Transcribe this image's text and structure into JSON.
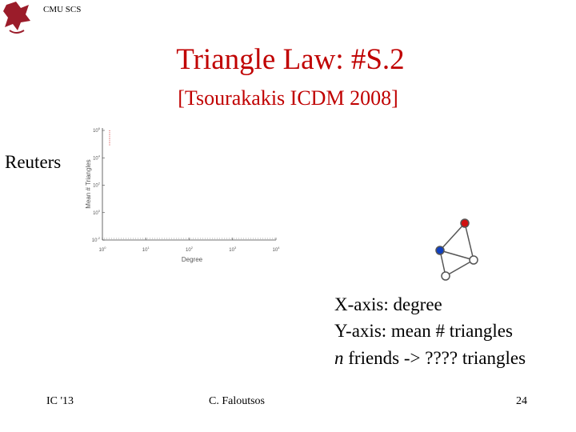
{
  "header": {
    "org": "CMU SCS"
  },
  "title": "Triangle Law: #S.2",
  "subtitle": "[Tsourakakis ICDM 2008]",
  "dataset_label": "Reuters",
  "plot": {
    "x_label": "Degree",
    "y_label": "Mean # Triangles",
    "x_ticks": [
      {
        "base": "10",
        "exp": "0"
      },
      {
        "base": "10",
        "exp": "1"
      },
      {
        "base": "10",
        "exp": "2"
      },
      {
        "base": "10",
        "exp": "3"
      },
      {
        "base": "10",
        "exp": "4"
      }
    ],
    "y_ticks": [
      {
        "base": "10",
        "exp": "6"
      },
      {
        "base": "10",
        "exp": "4"
      },
      {
        "base": "10",
        "exp": "2"
      },
      {
        "base": "10",
        "exp": "0"
      },
      {
        "base": "10",
        "exp": "-2"
      }
    ]
  },
  "notes": {
    "line1": "X-axis: degree",
    "line2": "Y-axis: mean # triangles",
    "line3_italic": "n",
    "line3_rest": " friends -> ???? triangles"
  },
  "footer": {
    "left": "IC '13",
    "center": "C. Faloutsos",
    "page": "24"
  }
}
